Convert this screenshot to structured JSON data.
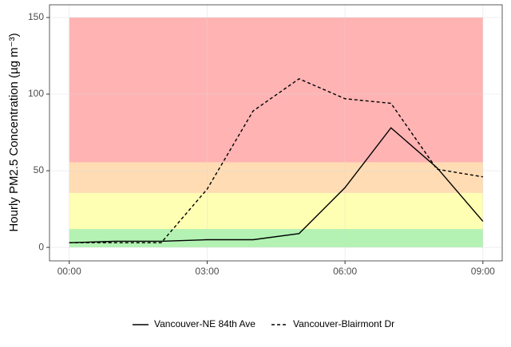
{
  "chart_data": {
    "type": "line",
    "y_label": "Hourly PM2.5 Concentration (µg m⁻³)",
    "x": [
      0,
      1,
      2,
      3,
      4,
      5,
      6,
      7,
      8,
      9
    ],
    "series": [
      {
        "name": "Vancouver-NE 84th Ave",
        "color": "#000000",
        "linestyle": "solid",
        "values": [
          3,
          4,
          4,
          5,
          5,
          9,
          39,
          78,
          52,
          17
        ]
      },
      {
        "name": "Vancouver-Blairmont Dr",
        "color": "#000000",
        "linestyle": "dashed",
        "values": [
          3,
          3,
          3,
          38,
          89,
          110,
          97,
          94,
          51,
          46
        ]
      }
    ],
    "bands": [
      {
        "from": 0,
        "to": 12,
        "color": "#b3f2b3"
      },
      {
        "from": 12,
        "to": 35.5,
        "color": "#ffffb3"
      },
      {
        "from": 35.5,
        "to": 55.5,
        "color": "#ffdcb3"
      },
      {
        "from": 55.5,
        "to": 150,
        "color": "#ffb3b3"
      }
    ],
    "xlim": [
      -0.43,
      9.42
    ],
    "ylim": [
      -8.8,
      158.3
    ],
    "xticks": [
      {
        "value": 0,
        "label": "00:00"
      },
      {
        "value": 3,
        "label": "03:00"
      },
      {
        "value": 6,
        "label": "06:00"
      },
      {
        "value": 9,
        "label": "09:00"
      }
    ],
    "yticks": [
      0,
      50,
      100,
      150
    ],
    "grid": true,
    "legend": "bottom"
  }
}
